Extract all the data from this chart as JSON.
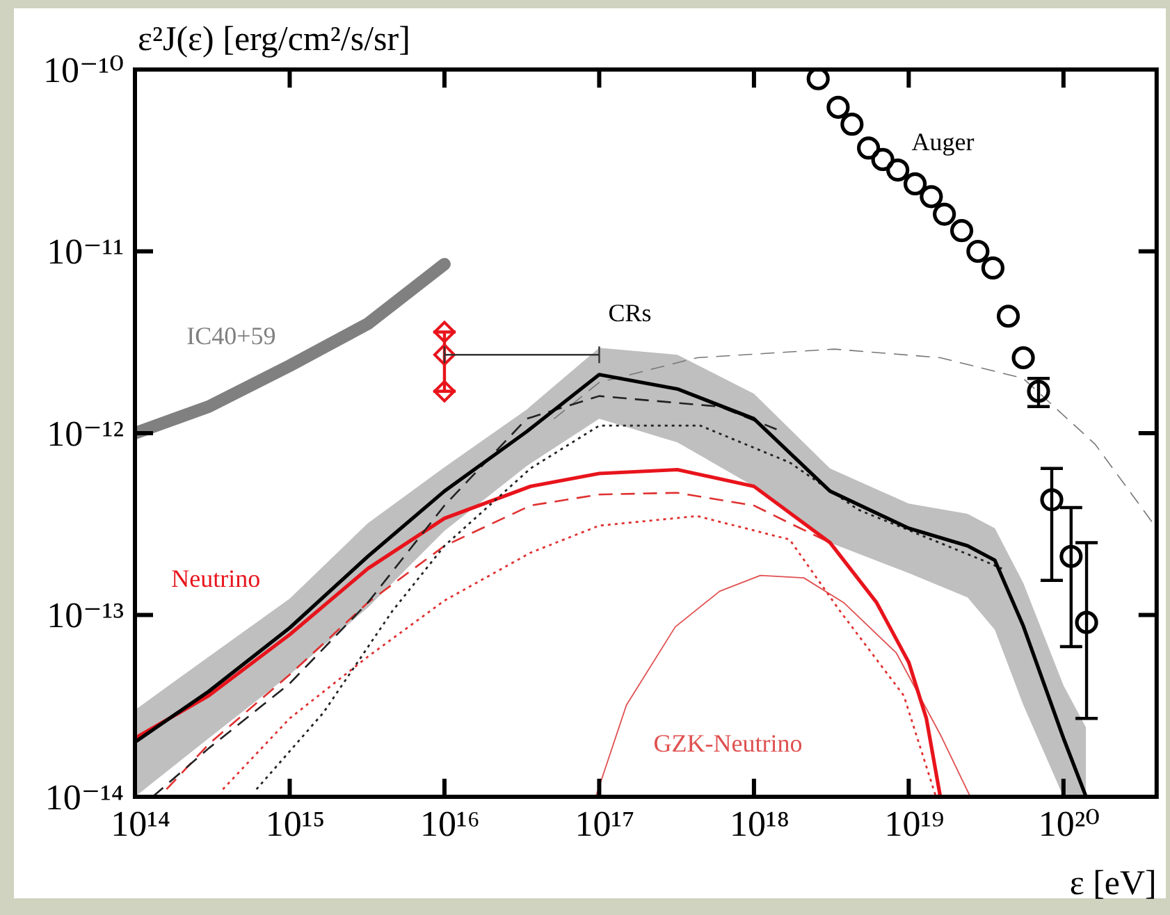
{
  "chart_data": {
    "type": "line",
    "title": "ε²J(ε) [erg/cm²/s/sr]",
    "xlabel": "ε [eV]",
    "log": "xy",
    "grid": false,
    "legend": false,
    "marker": "none",
    "xlim": [
      100000000000000.0,
      4e+20
    ],
    "ylim": [
      1e-14,
      1e-10
    ],
    "xticks": [
      {
        "value": 100000000000000.0,
        "label": "10¹⁴"
      },
      {
        "value": 1000000000000000.0,
        "label": "10¹⁵"
      },
      {
        "value": 1e+16,
        "label": "10¹⁶"
      },
      {
        "value": 1e+17,
        "label": "10¹⁷"
      },
      {
        "value": 1e+18,
        "label": "10¹⁸"
      },
      {
        "value": 1e+19,
        "label": "10¹⁹"
      },
      {
        "value": 1e+20,
        "label": "10²⁰"
      }
    ],
    "yticks": [
      {
        "value": 1e-14,
        "label": "10⁻¹⁴"
      },
      {
        "value": 1e-13,
        "label": "10⁻¹³"
      },
      {
        "value": 1e-12,
        "label": "10⁻¹²"
      },
      {
        "value": 1e-11,
        "label": "10⁻¹¹"
      },
      {
        "value": 1e-10,
        "label": "10⁻¹⁰"
      }
    ],
    "series": [
      {
        "name": "IC40+59",
        "color": "#808080",
        "line_style": "solid",
        "x": [
          100000000000000.0,
          300000000000000.0,
          1000000000000000.0,
          3200000000000000.0,
          1e+16
        ],
        "values": [
          1e-12,
          1.4e-12,
          2.35e-12,
          4e-12,
          8.5e-12
        ]
      },
      {
        "name": "CRs",
        "color": "#000000",
        "line_style": "solid",
        "x": [
          100000000000000.0,
          300000000000000.0,
          1000000000000000.0,
          3200000000000000.0,
          1e+16,
          3.4e+16,
          1e+17,
          3.2e+17,
          1e+18,
          3.1e+18,
          1e+19,
          2.4e+19,
          3.6e+19,
          5.5e+19,
          1e+20,
          1.4e+20
        ],
        "values": [
          2e-14,
          3.8e-14,
          8.5e-14,
          2.1e-13,
          4.8e-13,
          1.02e-12,
          2.1e-12,
          1.75e-12,
          1.2e-12,
          4.8e-13,
          3e-13,
          2.4e-13,
          2e-13,
          8.7e-14,
          2.1e-14,
          1e-14
        ],
        "upper": [
          3e-14,
          5.9e-14,
          1.23e-13,
          3.2e-13,
          6.5e-13,
          1.35e-12,
          2.95e-12,
          2.7e-12,
          1.65e-12,
          6.4e-13,
          4.1e-13,
          3.6e-13,
          3e-13,
          1.5e-13,
          4.1e-14,
          2.4e-14
        ],
        "lower": [
          1e-14,
          2.1e-14,
          4.7e-14,
          1.1e-13,
          2.9e-13,
          6.6e-13,
          1.2e-12,
          8.9e-13,
          5.1e-13,
          2.5e-13,
          1.7e-13,
          1.25e-13,
          8.3e-14,
          3.2e-14,
          1e-14,
          1e-14
        ]
      },
      {
        "color": "#222222",
        "line_style": "dashed",
        "x": [
          130000000000000.0,
          300000000000000.0,
          1000000000000000.0,
          3200000000000000.0,
          1e+16,
          3.4e+16,
          1e+17,
          6e+17,
          1.4e+18
        ],
        "values": [
          1e-14,
          1.85e-14,
          4.2e-14,
          1.17e-13,
          4e-13,
          1.2e-12,
          1.6e-12,
          1.4e-12,
          1.05e-12
        ]
      },
      {
        "color": "#222222",
        "line_style": "dotted",
        "x": [
          610000000000000.0,
          1650000000000000.0,
          4600000000000000.0,
          1e+16,
          3.6e+16,
          1e+17,
          4.5e+17,
          1.7e+18,
          4.7e+18,
          3e+19,
          4e+19
        ],
        "values": [
          1.1e-14,
          2.9e-14,
          1.05e-13,
          2.4e-13,
          6.4e-13,
          1.1e-12,
          1.1e-12,
          6.9e-13,
          3.8e-13,
          2e-13,
          1.8e-13
        ]
      },
      {
        "color": "#777777",
        "line_style": "dashed",
        "x": [
          5.1e+16,
          1e+17,
          4.3e+17,
          3.3e+18,
          1.6e+19,
          5.5e+19,
          1.6e+20,
          4e+20
        ],
        "values": [
          1.2e-12,
          1.9e-12,
          2.6e-12,
          2.9e-12,
          2.6e-12,
          2e-12,
          8.7e-13,
          3e-13
        ]
      },
      {
        "name": "Neutrino",
        "color": "#e8141c",
        "line_style": "solid",
        "x": [
          100000000000000.0,
          300000000000000.0,
          1000000000000000.0,
          3200000000000000.0,
          1e+16,
          3.6e+16,
          1e+17,
          3.2e+17,
          1e+18,
          3.1e+18,
          6.2e+18,
          1e+19,
          1.3e+19,
          1.6e+19
        ],
        "values": [
          2.1e-14,
          3.6e-14,
          7.8e-14,
          1.8e-13,
          3.4e-13,
          5.1e-13,
          6e-13,
          6.3e-13,
          5.1e-13,
          2.5e-13,
          1.17e-13,
          5.5e-14,
          2.7e-14,
          1e-14
        ]
      },
      {
        "color": "#e03030",
        "line_style": "dashed",
        "x": [
          160000000000000.0,
          300000000000000.0,
          1000000000000000.0,
          3200000000000000.0,
          1e+16,
          3.6e+16,
          1e+17,
          3.2e+17,
          1e+18,
          1.7e+18,
          3.1e+18
        ],
        "values": [
          1.1e-14,
          1.95e-14,
          4.7e-14,
          1.17e-13,
          2.4e-13,
          4e-13,
          4.6e-13,
          4.7e-13,
          4e-13,
          3.2e-13,
          2.5e-13
        ]
      },
      {
        "color": "#e03030",
        "line_style": "dotted",
        "x": [
          370000000000000.0,
          1000000000000000.0,
          3200000000000000.0,
          1e+16,
          3.6e+16,
          1e+17,
          4.3e+17,
          1.7e+18,
          3.6e+18,
          9.3e+18,
          1.5e+19
        ],
        "values": [
          1.1e-14,
          2.7e-14,
          5.9e-14,
          1.2e-13,
          2.2e-13,
          3.1e-13,
          3.5e-13,
          2.6e-13,
          1.05e-13,
          3.6e-14,
          1e-14
        ]
      },
      {
        "name": "GZK-Neutrino",
        "color": "#e05050",
        "line_style": "solid",
        "x": [
          9.5e+16,
          1.5e+17,
          3.1e+17,
          6e+17,
          1.1e+18,
          2.1e+18,
          3.8e+18,
          8.3e+18,
          1.6e+19,
          2.5e+19
        ],
        "values": [
          1e-14,
          3.2e-14,
          8.6e-14,
          1.35e-13,
          1.65e-13,
          1.6e-13,
          1.17e-13,
          6.2e-14,
          2.2e-14,
          1e-14
        ]
      },
      {
        "name": "Auger",
        "type": "scatter",
        "color": "#000000",
        "marker": "circle",
        "x": [
          2.6e+18,
          3.5e+18,
          4.3e+18,
          5.5e+18,
          6.8e+18,
          8.5e+18,
          1.1e+19,
          1.4e+19,
          1.7e+19,
          2.2e+19,
          2.8e+19,
          3.5e+19,
          4.4e+19,
          5.5e+19,
          6.9e+19,
          8.4e+19,
          1.12e+20,
          1.41e+20
        ],
        "values": [
          8.9e-11,
          6.2e-11,
          5e-11,
          3.7e-11,
          3.2e-11,
          2.8e-11,
          2.35e-11,
          2e-11,
          1.6e-11,
          1.3e-11,
          1e-11,
          8.1e-12,
          4.4e-12,
          2.6e-12,
          1.7e-12,
          4.3e-13,
          2.1e-13,
          9.1e-14
        ],
        "errors": [
          null,
          null,
          null,
          null,
          null,
          null,
          null,
          null,
          null,
          null,
          null,
          null,
          null,
          null,
          [
            1.4e-12,
            2e-12
          ],
          [
            1.55e-13,
            6.4e-13
          ],
          [
            6.7e-14,
            3.9e-13
          ],
          [
            2.7e-14,
            2.5e-13
          ]
        ]
      },
      {
        "type": "scatter",
        "color": "#e8141c",
        "marker": "diamond",
        "x": [
          1e+16
        ],
        "values": [
          2.7e-12
        ],
        "errors": [
          [
            1.7e-12,
            3.6e-12
          ]
        ],
        "xerrors": [
          [
            1e+16,
            1e+17
          ]
        ]
      },
      {
        "type": "scatter",
        "color": "#e8141c",
        "marker": "diamond",
        "x": [
          1e+16,
          1e+16
        ],
        "values": [
          3.6e-12,
          1.7e-12
        ]
      }
    ]
  }
}
